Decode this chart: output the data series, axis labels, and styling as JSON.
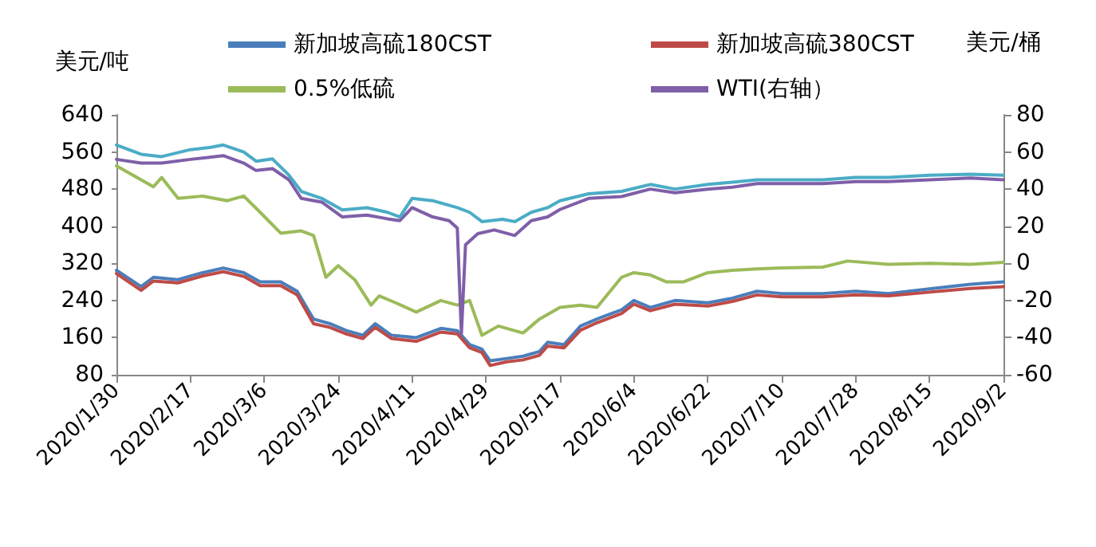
{
  "chart_data": {
    "type": "line",
    "ylabel": "美元/吨",
    "y2label": "美元/桶",
    "legend": "top",
    "grid": false,
    "marker": "none",
    "line_style": "solid",
    "xlim": [
      "2020-01-30",
      "2020-09-02"
    ],
    "xticks": [
      {
        "value": "2020-01-30",
        "label": "2020/1/30"
      },
      {
        "value": "2020-02-17",
        "label": "2020/2/17"
      },
      {
        "value": "2020-03-06",
        "label": "2020/3/6"
      },
      {
        "value": "2020-03-24",
        "label": "2020/3/24"
      },
      {
        "value": "2020-04-11",
        "label": "2020/4/11"
      },
      {
        "value": "2020-04-29",
        "label": "2020/4/29"
      },
      {
        "value": "2020-05-17",
        "label": "2020/5/17"
      },
      {
        "value": "2020-06-04",
        "label": "2020/6/4"
      },
      {
        "value": "2020-06-22",
        "label": "2020/6/22"
      },
      {
        "value": "2020-07-10",
        "label": "2020/7/10"
      },
      {
        "value": "2020-07-28",
        "label": "2020/7/28"
      },
      {
        "value": "2020-08-15",
        "label": "2020/8/15"
      },
      {
        "value": "2020-09-02",
        "label": "2020/9/2"
      }
    ],
    "ylim": [
      80,
      640
    ],
    "yticks": [
      80,
      160,
      240,
      320,
      400,
      480,
      560,
      640
    ],
    "y2lim": [
      -60,
      80
    ],
    "y2ticks": [
      -60,
      -40,
      -20,
      0,
      20,
      40,
      60,
      80
    ],
    "series": [
      {
        "name": "新加坡高硫180CST",
        "color": "#4a7ebb",
        "x": [
          "2020-01-30",
          "2020-02-05",
          "2020-02-08",
          "2020-02-14",
          "2020-02-20",
          "2020-02-25",
          "2020-03-01",
          "2020-03-05",
          "2020-03-10",
          "2020-03-14",
          "2020-03-18",
          "2020-03-22",
          "2020-03-26",
          "2020-03-30",
          "2020-04-02",
          "2020-04-06",
          "2020-04-12",
          "2020-04-18",
          "2020-04-22",
          "2020-04-25",
          "2020-04-28",
          "2020-04-30",
          "2020-05-04",
          "2020-05-08",
          "2020-05-12",
          "2020-05-14",
          "2020-05-18",
          "2020-05-22",
          "2020-05-26",
          "2020-06-01",
          "2020-06-04",
          "2020-06-08",
          "2020-06-14",
          "2020-06-22",
          "2020-06-28",
          "2020-07-04",
          "2020-07-10",
          "2020-07-20",
          "2020-07-28",
          "2020-08-05",
          "2020-08-15",
          "2020-08-25",
          "2020-09-02"
        ],
        "values": [
          305,
          270,
          290,
          285,
          300,
          310,
          300,
          280,
          280,
          260,
          200,
          190,
          175,
          165,
          190,
          165,
          160,
          180,
          175,
          145,
          135,
          110,
          115,
          120,
          130,
          150,
          145,
          185,
          200,
          220,
          240,
          225,
          240,
          235,
          245,
          260,
          255,
          255,
          260,
          255,
          265,
          275,
          280
        ]
      },
      {
        "name": "新加坡高硫380CST",
        "color": "#be4b48",
        "x": [
          "2020-01-30",
          "2020-02-05",
          "2020-02-08",
          "2020-02-14",
          "2020-02-20",
          "2020-02-25",
          "2020-03-01",
          "2020-03-05",
          "2020-03-10",
          "2020-03-14",
          "2020-03-18",
          "2020-03-22",
          "2020-03-26",
          "2020-03-30",
          "2020-04-02",
          "2020-04-06",
          "2020-04-12",
          "2020-04-18",
          "2020-04-22",
          "2020-04-25",
          "2020-04-28",
          "2020-04-30",
          "2020-05-04",
          "2020-05-08",
          "2020-05-12",
          "2020-05-14",
          "2020-05-18",
          "2020-05-22",
          "2020-05-26",
          "2020-06-01",
          "2020-06-04",
          "2020-06-08",
          "2020-06-14",
          "2020-06-22",
          "2020-06-28",
          "2020-07-04",
          "2020-07-10",
          "2020-07-20",
          "2020-07-28",
          "2020-08-05",
          "2020-08-15",
          "2020-08-25",
          "2020-09-02"
        ],
        "values": [
          298,
          262,
          282,
          278,
          293,
          302,
          292,
          272,
          272,
          252,
          190,
          182,
          168,
          158,
          182,
          158,
          152,
          172,
          168,
          138,
          128,
          100,
          108,
          112,
          122,
          142,
          138,
          176,
          192,
          212,
          232,
          218,
          232,
          228,
          238,
          252,
          248,
          248,
          252,
          250,
          258,
          266,
          270
        ]
      },
      {
        "name": "0.5%低硫",
        "color": "#9bbb59",
        "x": [
          "2020-01-30",
          "2020-02-05",
          "2020-02-08",
          "2020-02-10",
          "2020-02-14",
          "2020-02-20",
          "2020-02-26",
          "2020-03-01",
          "2020-03-05",
          "2020-03-10",
          "2020-03-15",
          "2020-03-18",
          "2020-03-21",
          "2020-03-24",
          "2020-03-28",
          "2020-04-01",
          "2020-04-03",
          "2020-04-07",
          "2020-04-12",
          "2020-04-18",
          "2020-04-22",
          "2020-04-25",
          "2020-04-28",
          "2020-05-02",
          "2020-05-08",
          "2020-05-12",
          "2020-05-17",
          "2020-05-22",
          "2020-05-26",
          "2020-06-01",
          "2020-06-04",
          "2020-06-08",
          "2020-06-12",
          "2020-06-16",
          "2020-06-22",
          "2020-06-28",
          "2020-07-04",
          "2020-07-10",
          "2020-07-20",
          "2020-07-26",
          "2020-08-05",
          "2020-08-15",
          "2020-08-25",
          "2020-09-02"
        ],
        "values": [
          530,
          500,
          485,
          505,
          460,
          465,
          455,
          465,
          430,
          385,
          390,
          380,
          290,
          315,
          285,
          230,
          250,
          235,
          215,
          240,
          230,
          240,
          165,
          185,
          170,
          200,
          225,
          230,
          225,
          290,
          300,
          295,
          280,
          280,
          300,
          305,
          308,
          310,
          312,
          325,
          318,
          320,
          318,
          322
        ]
      },
      {
        "name": "WTI(右轴）",
        "color": "#7f5fa8",
        "axis": "y2",
        "x": [
          "2020-01-30",
          "2020-02-05",
          "2020-02-10",
          "2020-02-17",
          "2020-02-25",
          "2020-03-01",
          "2020-03-04",
          "2020-03-08",
          "2020-03-12",
          "2020-03-15",
          "2020-03-20",
          "2020-03-25",
          "2020-03-31",
          "2020-04-05",
          "2020-04-08",
          "2020-04-11",
          "2020-04-16",
          "2020-04-20",
          "2020-04-22",
          "2020-04-23",
          "2020-04-24",
          "2020-04-27",
          "2020-05-01",
          "2020-05-06",
          "2020-05-10",
          "2020-05-14",
          "2020-05-17",
          "2020-05-24",
          "2020-06-01",
          "2020-06-08",
          "2020-06-14",
          "2020-06-22",
          "2020-06-28",
          "2020-07-04",
          "2020-07-10",
          "2020-07-20",
          "2020-07-28",
          "2020-08-05",
          "2020-08-15",
          "2020-08-25",
          "2020-09-02"
        ],
        "values": [
          56,
          54,
          54,
          56,
          58,
          54,
          50,
          51,
          45,
          35,
          33,
          25,
          26,
          24,
          23,
          30,
          25,
          23,
          19,
          -38,
          10,
          16,
          18,
          15,
          23,
          25,
          29,
          35,
          36,
          40,
          38,
          40,
          41,
          43,
          43,
          43,
          44,
          44,
          45,
          46,
          45
        ]
      },
      {
        "color": "#4bacc6",
        "x": [
          "2020-01-30",
          "2020-02-05",
          "2020-02-10",
          "2020-02-17",
          "2020-02-22",
          "2020-02-25",
          "2020-03-01",
          "2020-03-04",
          "2020-03-08",
          "2020-03-12",
          "2020-03-15",
          "2020-03-20",
          "2020-03-25",
          "2020-03-31",
          "2020-04-05",
          "2020-04-08",
          "2020-04-11",
          "2020-04-16",
          "2020-04-22",
          "2020-04-25",
          "2020-04-28",
          "2020-05-03",
          "2020-05-06",
          "2020-05-10",
          "2020-05-14",
          "2020-05-17",
          "2020-05-24",
          "2020-06-01",
          "2020-06-08",
          "2020-06-14",
          "2020-06-22",
          "2020-06-28",
          "2020-07-04",
          "2020-07-10",
          "2020-07-20",
          "2020-07-28",
          "2020-08-05",
          "2020-08-15",
          "2020-08-25",
          "2020-09-02"
        ],
        "values": [
          575,
          555,
          550,
          565,
          570,
          575,
          560,
          540,
          545,
          510,
          475,
          460,
          435,
          440,
          430,
          420,
          460,
          455,
          440,
          430,
          410,
          415,
          410,
          430,
          440,
          455,
          470,
          475,
          490,
          480,
          490,
          495,
          500,
          500,
          500,
          505,
          505,
          510,
          512,
          510
        ]
      }
    ]
  }
}
